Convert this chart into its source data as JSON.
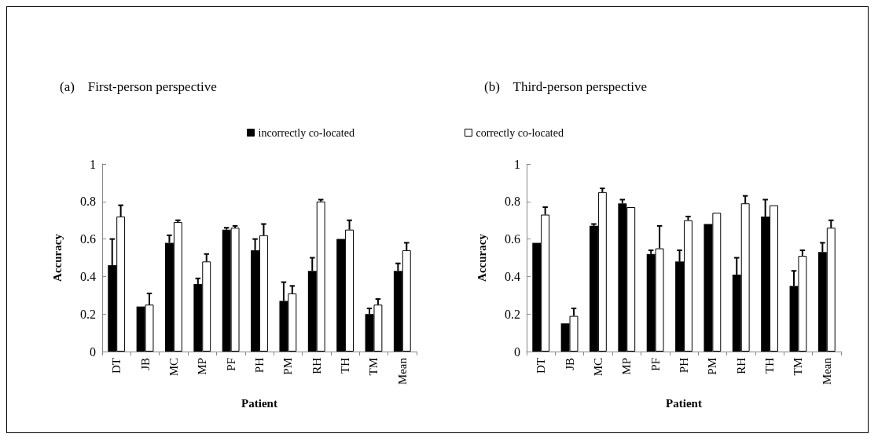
{
  "chart_data": [
    {
      "type": "bar",
      "title": "(a)    First-person perspective",
      "xlabel": "Patient",
      "ylabel": "Accuracy",
      "categories": [
        "DT",
        "JB",
        "MC",
        "MP",
        "PF",
        "PH",
        "PM",
        "RH",
        "TH",
        "TM",
        "Mean"
      ],
      "ylim": [
        0,
        1
      ],
      "yticks": [
        0,
        0.2,
        0.4,
        0.6,
        0.8,
        1
      ],
      "grid": false,
      "legend": "top right",
      "series": [
        {
          "name": "incorrectly co-located",
          "color": "#000000",
          "values": [
            0.46,
            0.24,
            0.58,
            0.36,
            0.65,
            0.54,
            0.27,
            0.43,
            0.6,
            0.2,
            0.43
          ],
          "errors": [
            [
              0.46,
              0.6
            ],
            null,
            [
              0.58,
              0.62
            ],
            [
              0.36,
              0.39
            ],
            [
              0.65,
              0.66
            ],
            [
              0.54,
              0.6
            ],
            [
              0.27,
              0.37
            ],
            [
              0.43,
              0.5
            ],
            null,
            [
              0.2,
              0.23
            ],
            [
              0.43,
              0.47
            ]
          ]
        },
        {
          "name": "correctly co-located",
          "color": "#ffffff",
          "values": [
            0.72,
            0.25,
            0.69,
            0.48,
            0.66,
            0.62,
            0.31,
            0.8,
            0.65,
            0.25,
            0.54
          ],
          "errors": [
            [
              0.72,
              0.78
            ],
            [
              0.25,
              0.31
            ],
            [
              0.69,
              0.7
            ],
            [
              0.48,
              0.52
            ],
            [
              0.66,
              0.67
            ],
            [
              0.62,
              0.68
            ],
            [
              0.31,
              0.35
            ],
            [
              0.8,
              0.81
            ],
            [
              0.65,
              0.7
            ],
            [
              0.25,
              0.28
            ],
            [
              0.54,
              0.58
            ]
          ]
        }
      ]
    },
    {
      "type": "bar",
      "title": "(b)    Third-person perspective",
      "xlabel": "Patient",
      "ylabel": "Accuracy",
      "categories": [
        "DT",
        "JB",
        "MC",
        "MP",
        "PF",
        "PH",
        "PM",
        "RH",
        "TH",
        "TM",
        "Mean"
      ],
      "ylim": [
        0,
        1
      ],
      "yticks": [
        0,
        0.2,
        0.4,
        0.6,
        0.8,
        1
      ],
      "grid": false,
      "legend": false,
      "series": [
        {
          "color": "#000000",
          "values": [
            0.58,
            0.15,
            0.67,
            0.79,
            0.52,
            0.48,
            0.68,
            0.41,
            0.72,
            0.35,
            0.53
          ],
          "errors": [
            null,
            null,
            [
              0.67,
              0.68
            ],
            [
              0.79,
              0.81
            ],
            [
              0.52,
              0.54
            ],
            [
              0.48,
              0.54
            ],
            null,
            [
              0.41,
              0.5
            ],
            [
              0.72,
              0.81
            ],
            [
              0.35,
              0.43
            ],
            [
              0.53,
              0.58
            ]
          ]
        },
        {
          "color": "#ffffff",
          "values": [
            0.73,
            0.19,
            0.85,
            0.77,
            0.55,
            0.7,
            0.74,
            0.79,
            0.78,
            0.51,
            0.66
          ],
          "errors": [
            [
              0.73,
              0.77
            ],
            [
              0.19,
              0.23
            ],
            [
              0.85,
              0.87
            ],
            null,
            [
              0.55,
              0.67
            ],
            [
              0.7,
              0.72
            ],
            null,
            [
              0.79,
              0.83
            ],
            null,
            [
              0.51,
              0.54
            ],
            [
              0.66,
              0.7
            ]
          ]
        }
      ]
    }
  ]
}
